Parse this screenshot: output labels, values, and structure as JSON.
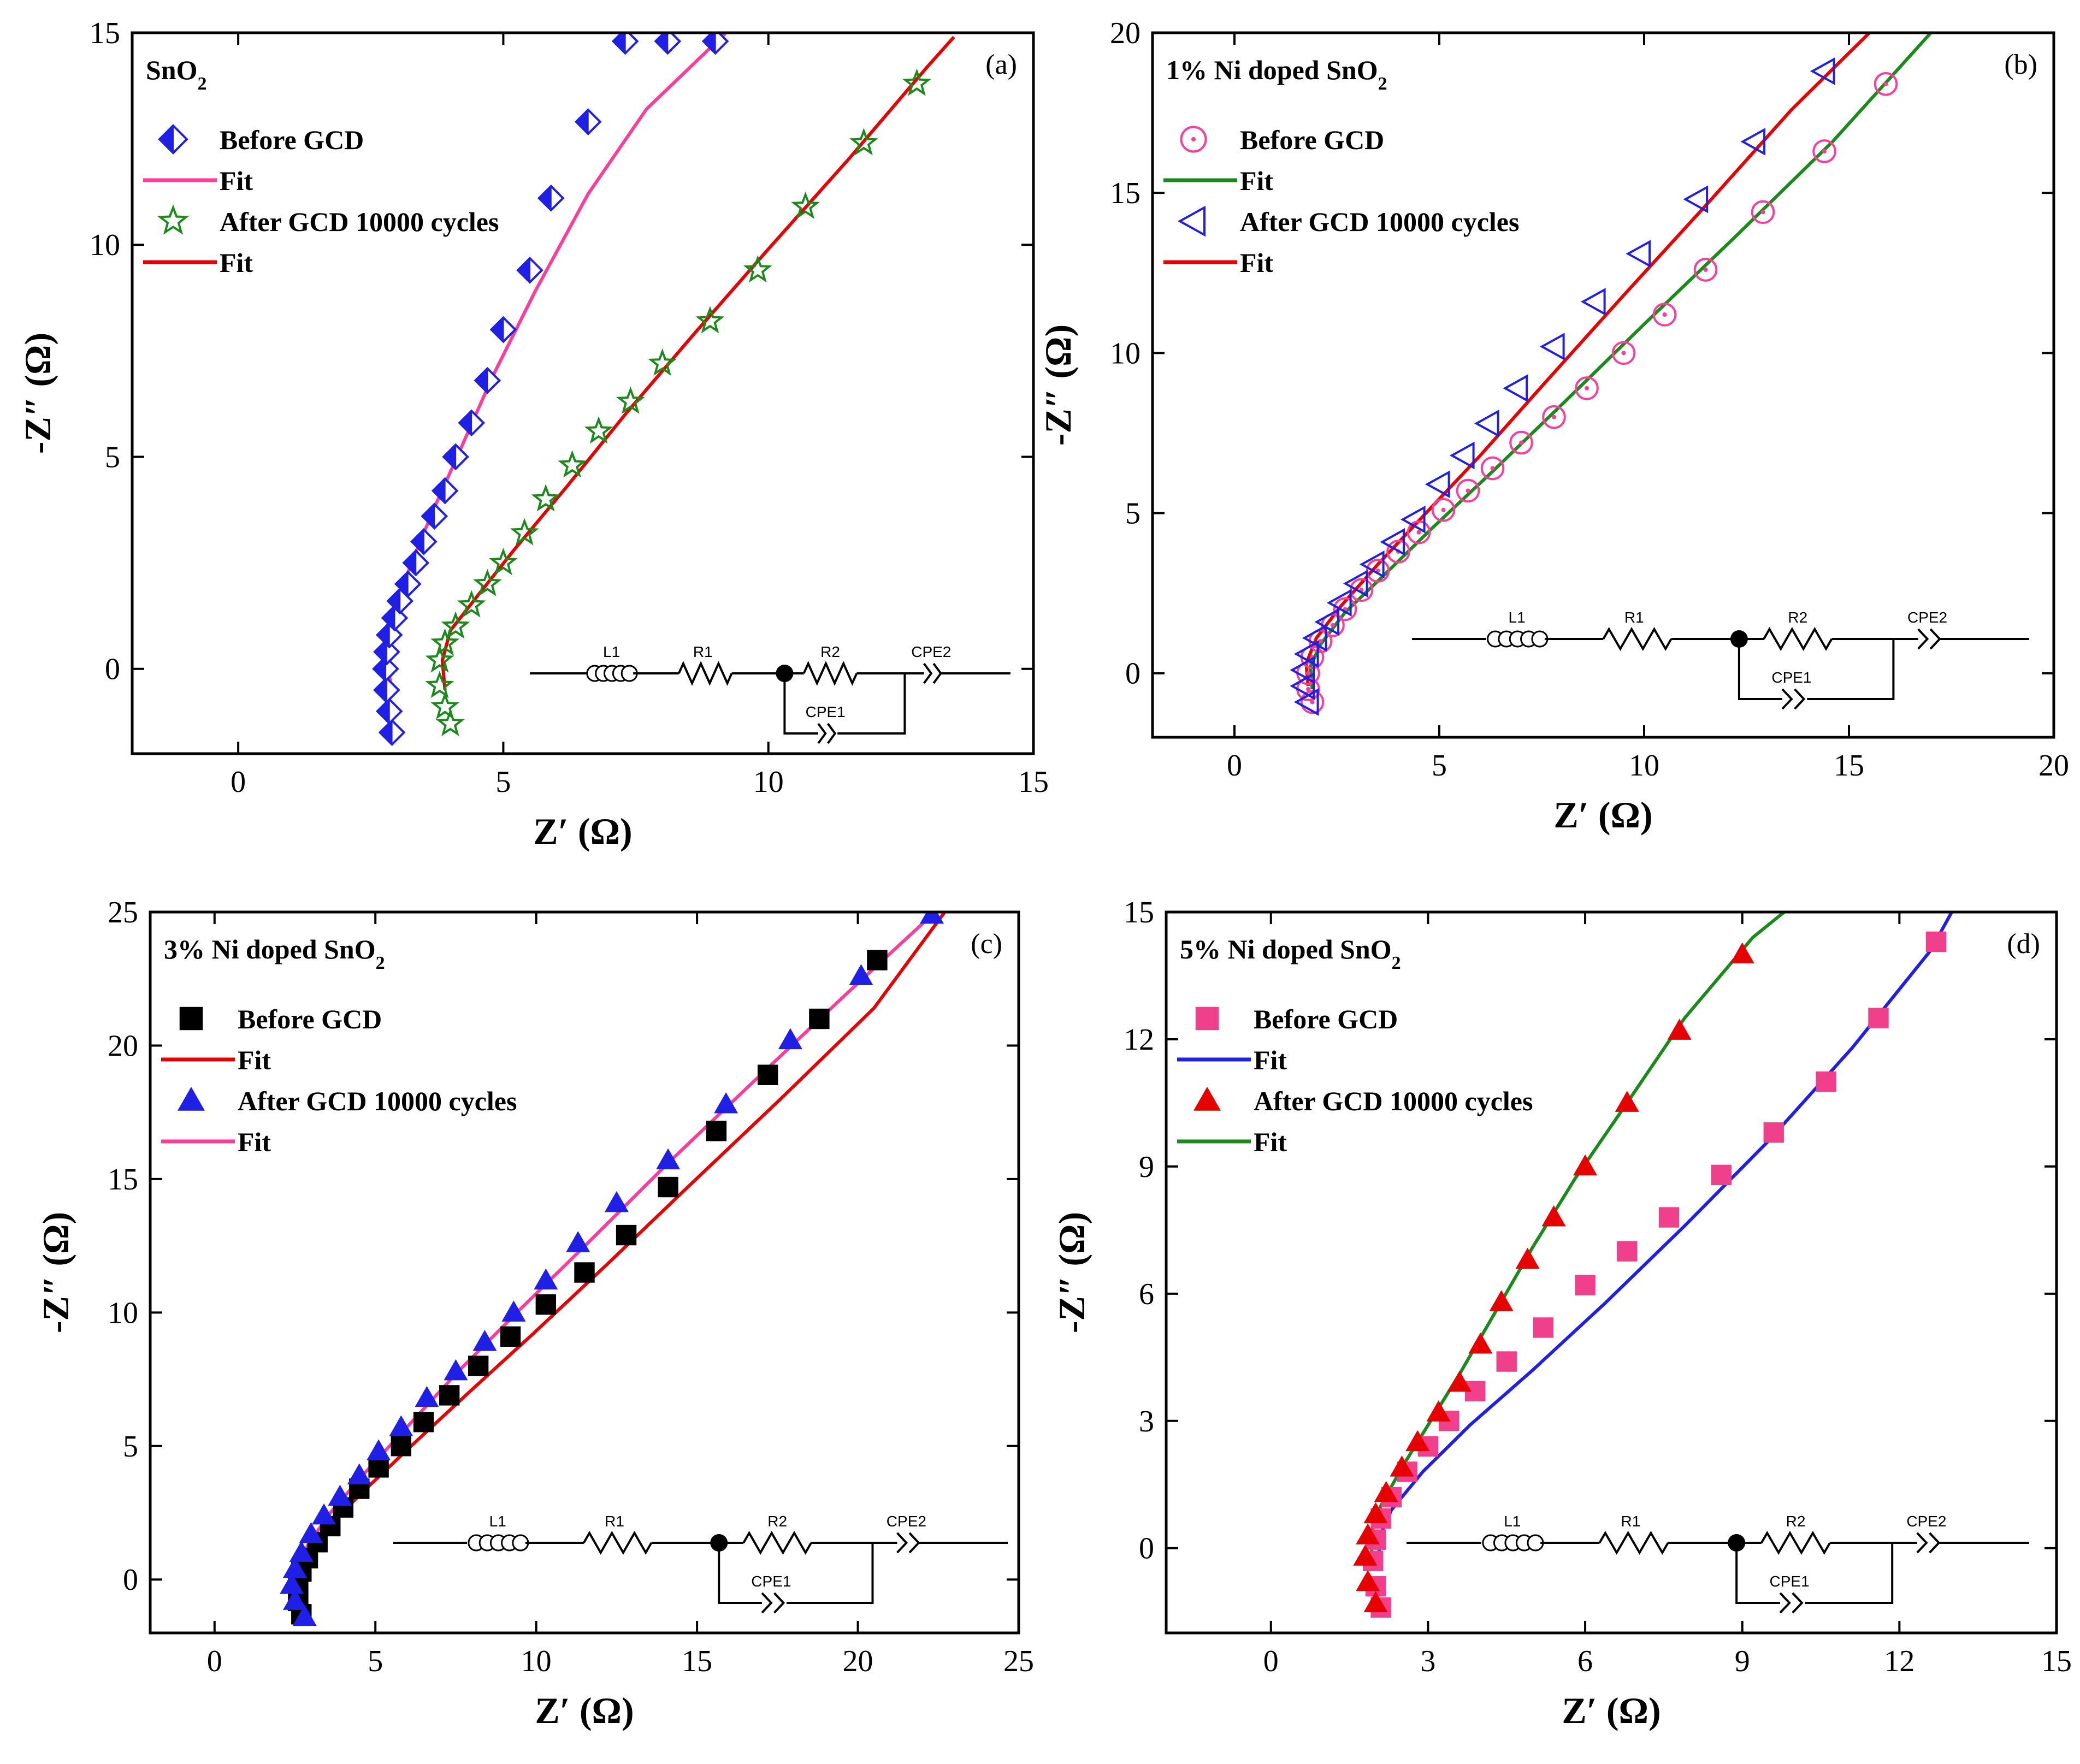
{
  "chart_data": [
    {
      "panel": "a",
      "type": "scatter",
      "title": "SnO₂",
      "label": "(a)",
      "xlabel": "Z′ (Ω)",
      "ylabel": "-Z″ (Ω)",
      "xlim": [
        -2,
        15
      ],
      "ylim": [
        -2,
        15
      ],
      "xticks": [
        0,
        5,
        10,
        15
      ],
      "yticks": [
        0,
        5,
        10,
        15
      ],
      "legend_position": "top-left",
      "series": [
        {
          "name": "Before GCD",
          "marker": "half-diamond",
          "color": "#1f1fe6",
          "x": [
            2.9,
            2.85,
            2.8,
            2.78,
            2.8,
            2.85,
            2.95,
            3.05,
            3.2,
            3.35,
            3.5,
            3.7,
            3.9,
            4.1,
            4.4,
            4.7,
            5.0,
            5.5,
            5.9,
            6.6,
            7.3,
            8.1,
            9.0
          ],
          "y": [
            -1.5,
            -1.0,
            -0.5,
            0.0,
            0.4,
            0.8,
            1.2,
            1.6,
            2.0,
            2.5,
            3.0,
            3.6,
            4.2,
            5.0,
            5.8,
            6.8,
            8.0,
            9.4,
            11.1,
            12.9,
            14.8,
            14.8,
            14.8
          ]
        },
        {
          "name": "Fit",
          "style": "line",
          "color": "#ff3c9a",
          "x": [
            2.9,
            2.8,
            2.82,
            3.0,
            3.3,
            3.7,
            4.2,
            4.8,
            5.6,
            6.6,
            7.7,
            9.2
          ],
          "y": [
            -0.5,
            0.2,
            0.8,
            1.6,
            2.6,
            3.8,
            5.2,
            6.9,
            8.9,
            11.2,
            13.2,
            15.0
          ]
        },
        {
          "name": "After GCD 10000 cycles",
          "marker": "star",
          "color": "#1a8a1a",
          "x": [
            4.0,
            3.9,
            3.8,
            3.8,
            3.9,
            4.1,
            4.4,
            4.7,
            5.0,
            5.4,
            5.8,
            6.3,
            6.8,
            7.4,
            8.0,
            8.9,
            9.8,
            10.7,
            11.8,
            12.8
          ],
          "y": [
            -1.3,
            -0.9,
            -0.4,
            0.2,
            0.6,
            1.0,
            1.5,
            2.0,
            2.5,
            3.2,
            4.0,
            4.8,
            5.6,
            6.3,
            7.2,
            8.2,
            9.4,
            10.9,
            12.4,
            13.8
          ]
        },
        {
          "name": "Fit",
          "style": "line",
          "color": "#e60000",
          "x": [
            3.9,
            3.85,
            4.0,
            4.5,
            5.2,
            6.2,
            7.3,
            8.6,
            10.0,
            11.5,
            13.0,
            13.5
          ],
          "y": [
            -0.5,
            0.2,
            0.9,
            1.7,
            2.8,
            4.3,
            6.0,
            7.9,
            9.9,
            12.0,
            14.2,
            14.9
          ]
        }
      ]
    },
    {
      "panel": "b",
      "type": "scatter",
      "title": "1% Ni doped SnO₂",
      "label": "(b)",
      "xlabel": "Z′ (Ω)",
      "ylabel": "-Z″ (Ω)",
      "xlim": [
        -2,
        20
      ],
      "ylim": [
        -2,
        20
      ],
      "xticks": [
        0,
        5,
        10,
        15,
        20
      ],
      "yticks": [
        0,
        5,
        10,
        15,
        20
      ],
      "legend_position": "top-left",
      "series": [
        {
          "name": "Before GCD",
          "marker": "open-circle-dot",
          "color": "#ff3c9a",
          "x": [
            1.9,
            1.8,
            1.8,
            1.9,
            2.1,
            2.4,
            2.7,
            3.1,
            3.5,
            4.0,
            4.5,
            5.1,
            5.7,
            6.3,
            7.0,
            7.8,
            8.6,
            9.5,
            10.5,
            11.5,
            12.9,
            14.4,
            15.9
          ],
          "y": [
            -0.9,
            -0.5,
            0.0,
            0.5,
            1.0,
            1.5,
            2.0,
            2.6,
            3.2,
            3.8,
            4.4,
            5.1,
            5.7,
            6.4,
            7.2,
            8.0,
            8.9,
            10.0,
            11.2,
            12.6,
            14.4,
            16.3,
            18.4
          ]
        },
        {
          "name": "Fit",
          "style": "line",
          "color": "#1a8a1a",
          "x": [
            1.9,
            1.85,
            2.1,
            2.7,
            3.6,
            4.8,
            6.3,
            8.0,
            10.0,
            12.2,
            14.6,
            17.0
          ],
          "y": [
            -0.5,
            0.2,
            0.9,
            1.9,
            3.0,
            4.5,
            6.3,
            8.4,
            10.9,
            13.6,
            16.6,
            20.0
          ]
        },
        {
          "name": "After GCD 10000 cycles",
          "marker": "open-left-triangle",
          "color": "#1f1fe6",
          "x": [
            1.8,
            1.7,
            1.7,
            1.8,
            2.0,
            2.3,
            2.6,
            3.0,
            3.4,
            3.9,
            4.4,
            5.0,
            5.6,
            6.2,
            6.9,
            7.8,
            8.8,
            9.9,
            11.3,
            12.7,
            14.4
          ],
          "y": [
            -0.9,
            -0.4,
            0.1,
            0.6,
            1.1,
            1.6,
            2.2,
            2.8,
            3.4,
            4.1,
            4.8,
            5.9,
            6.8,
            7.8,
            8.9,
            10.2,
            11.6,
            13.1,
            14.8,
            16.6,
            18.8
          ]
        },
        {
          "name": "Fit",
          "style": "line",
          "color": "#e60000",
          "x": [
            1.8,
            1.75,
            2.0,
            2.6,
            3.5,
            4.6,
            6.0,
            7.6,
            9.5,
            11.5,
            13.6,
            15.5
          ],
          "y": [
            -0.4,
            0.3,
            1.1,
            2.1,
            3.4,
            4.9,
            6.8,
            9.1,
            11.8,
            14.6,
            17.6,
            20.0
          ]
        }
      ]
    },
    {
      "panel": "c",
      "type": "scatter",
      "title": "3% Ni doped SnO₂",
      "label": "(c)",
      "xlabel": "Z′ (Ω)",
      "ylabel": "-Z″ (Ω)",
      "xlim": [
        -2,
        25
      ],
      "ylim": [
        -2,
        25
      ],
      "xticks": [
        0,
        5,
        10,
        15,
        20,
        25
      ],
      "yticks": [
        0,
        5,
        10,
        15,
        20,
        25
      ],
      "legend_position": "top-left",
      "series": [
        {
          "name": "Before GCD",
          "marker": "filled-square",
          "color": "#000000",
          "x": [
            2.7,
            2.6,
            2.6,
            2.7,
            2.9,
            3.2,
            3.6,
            4.0,
            4.5,
            5.1,
            5.8,
            6.5,
            7.3,
            8.2,
            9.2,
            10.3,
            11.5,
            12.8,
            14.1,
            15.6,
            17.2,
            18.8,
            20.6
          ],
          "y": [
            -1.3,
            -0.8,
            -0.2,
            0.3,
            0.8,
            1.4,
            2.0,
            2.7,
            3.4,
            4.2,
            5.0,
            5.9,
            6.9,
            8.0,
            9.1,
            10.3,
            11.5,
            12.9,
            14.7,
            16.8,
            18.9,
            21.0,
            23.2
          ]
        },
        {
          "name": "Fit",
          "style": "line",
          "color": "#e60000",
          "x": [
            2.7,
            2.65,
            3.0,
            3.7,
            4.8,
            6.2,
            7.9,
            9.9,
            12.2,
            14.8,
            17.6,
            20.5,
            22.7
          ],
          "y": [
            -0.6,
            0.2,
            1.1,
            2.2,
            3.5,
            5.1,
            7.0,
            9.2,
            11.8,
            14.8,
            18.0,
            21.4,
            25.0
          ]
        },
        {
          "name": "After GCD 10000 cycles",
          "marker": "filled-triangle",
          "color": "#1f1fe6",
          "x": [
            2.8,
            2.5,
            2.4,
            2.5,
            2.7,
            3.0,
            3.4,
            3.9,
            4.5,
            5.1,
            5.8,
            6.6,
            7.5,
            8.4,
            9.3,
            10.3,
            11.3,
            12.5,
            14.1,
            15.9,
            17.9,
            20.1,
            22.3
          ],
          "y": [
            -1.4,
            -0.8,
            -0.2,
            0.4,
            1.0,
            1.7,
            2.4,
            3.1,
            3.9,
            4.8,
            5.7,
            6.8,
            7.8,
            8.9,
            10.0,
            11.2,
            12.6,
            14.1,
            15.7,
            17.8,
            20.2,
            22.6,
            24.9
          ]
        },
        {
          "name": "Fit",
          "style": "line",
          "color": "#ff3c9a",
          "x": [
            2.6,
            2.55,
            2.9,
            3.6,
            4.6,
            5.9,
            7.5,
            9.4,
            11.6,
            14.1,
            16.8,
            19.7,
            22.4
          ],
          "y": [
            -0.6,
            0.3,
            1.3,
            2.5,
            3.9,
            5.6,
            7.7,
            10.0,
            12.6,
            15.6,
            18.7,
            22.0,
            25.0
          ]
        }
      ]
    },
    {
      "panel": "d",
      "type": "scatter",
      "title": "5% Ni doped SnO₂",
      "label": "(d)",
      "xlabel": "Z′ (Ω)",
      "ylabel": "-Z″ (Ω)",
      "xlim": [
        -2,
        15
      ],
      "ylim": [
        -2,
        15
      ],
      "xticks": [
        0,
        3,
        6,
        9,
        12,
        15
      ],
      "yticks": [
        0,
        3,
        6,
        9,
        12,
        15
      ],
      "legend_position": "top-left",
      "series": [
        {
          "name": "Before GCD",
          "marker": "filled-square",
          "color": "#f0408c",
          "x": [
            2.1,
            2.0,
            1.95,
            2.0,
            2.1,
            2.3,
            2.6,
            3.0,
            3.4,
            3.9,
            4.5,
            5.2,
            6.0,
            6.8,
            7.6,
            8.6,
            9.6,
            10.6,
            11.6,
            12.7
          ],
          "y": [
            -1.4,
            -0.9,
            -0.3,
            0.2,
            0.7,
            1.2,
            1.8,
            2.4,
            3.0,
            3.7,
            4.4,
            5.2,
            6.2,
            7.0,
            7.8,
            8.8,
            9.8,
            11.0,
            12.5,
            14.3
          ]
        },
        {
          "name": "Fit",
          "style": "line",
          "color": "#1f1fe6",
          "x": [
            2.1,
            2.05,
            2.3,
            2.9,
            3.8,
            5.0,
            6.4,
            7.9,
            9.5,
            11.1,
            12.6,
            13.0
          ],
          "y": [
            -0.5,
            0.2,
            0.9,
            1.8,
            2.9,
            4.2,
            5.8,
            7.6,
            9.6,
            11.8,
            14.1,
            15.0
          ]
        },
        {
          "name": "After GCD 10000 cycles",
          "marker": "filled-triangle",
          "color": "#e60000",
          "x": [
            2.0,
            1.85,
            1.8,
            1.85,
            2.0,
            2.2,
            2.5,
            2.8,
            3.2,
            3.6,
            4.0,
            4.4,
            4.9,
            5.4,
            6.0,
            6.8,
            7.8,
            9.0
          ],
          "y": [
            -1.3,
            -0.8,
            -0.2,
            0.3,
            0.8,
            1.3,
            1.9,
            2.5,
            3.2,
            3.9,
            4.8,
            5.8,
            6.8,
            7.8,
            9.0,
            10.5,
            12.2,
            14.0
          ]
        },
        {
          "name": "Fit",
          "style": "line",
          "color": "#1a8a1a",
          "x": [
            1.95,
            1.9,
            2.1,
            2.5,
            3.0,
            3.6,
            4.3,
            5.0,
            5.8,
            6.8,
            7.9,
            9.2,
            9.8
          ],
          "y": [
            -0.4,
            0.3,
            1.0,
            1.9,
            2.9,
            4.1,
            5.6,
            7.1,
            8.7,
            10.5,
            12.5,
            14.4,
            15.0
          ]
        }
      ]
    }
  ],
  "circuit": {
    "labels": [
      "L1",
      "R1",
      "R2",
      "CPE2",
      "CPE1"
    ]
  }
}
